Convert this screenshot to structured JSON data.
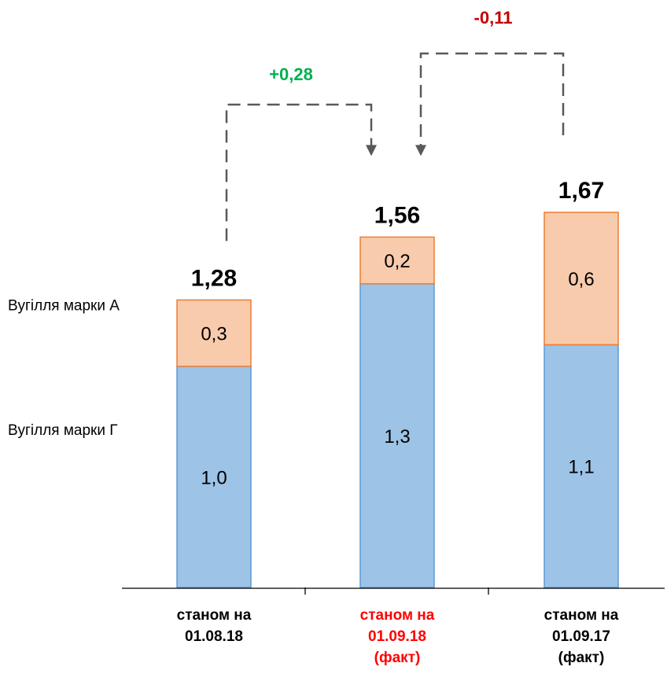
{
  "colors": {
    "series_g": "#9DC3E6",
    "series_g_edge": "#5B9BD5",
    "series_a": "#F8CBAD",
    "series_a_edge": "#ED7D31",
    "highlight_category": "#FF0000",
    "positive_delta": "#00B050",
    "negative_delta": "#C00000",
    "connector": "#595959"
  },
  "chart_data": {
    "type": "bar",
    "stacked": true,
    "categories": [
      [
        "станом на",
        "01.08.18"
      ],
      [
        "станом на",
        "01.09.18",
        "(факт)"
      ],
      [
        "станом на",
        "01.09.17",
        "(факт)"
      ]
    ],
    "highlighted_category_index": 1,
    "series": [
      {
        "name": "Вугілля  марки Г",
        "values": [
          1.0,
          1.3,
          1.1
        ],
        "labels": [
          "1,0",
          "1,3",
          "1,1"
        ]
      },
      {
        "name": "Вугілля марки А",
        "values": [
          0.3,
          0.2,
          0.6
        ],
        "labels": [
          "0,3",
          "0,2",
          "0,6"
        ]
      }
    ],
    "totals": [
      1.28,
      1.56,
      1.67
    ],
    "total_labels": [
      "1,28",
      "1,56",
      "1,67"
    ],
    "deltas": [
      {
        "from": 0,
        "to": 1,
        "label": "+0,28",
        "sign": "positive"
      },
      {
        "from": 2,
        "to": 1,
        "label": "-0,11",
        "sign": "negative"
      }
    ],
    "ylim": [
      0,
      1.67
    ],
    "grid": false,
    "legend_placement": "left, series labels aligned with segments"
  }
}
